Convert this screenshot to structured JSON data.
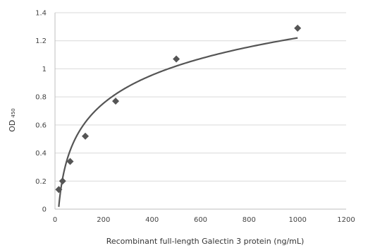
{
  "chart_data": {
    "type": "scatter",
    "title": "",
    "xlabel": "Recombinant full-length Galectin 3 protein (ng/mL)",
    "ylabel_main": "OD",
    "ylabel_sub": "450",
    "xlim": [
      0,
      1200
    ],
    "ylim": [
      0,
      1.4
    ],
    "x_ticks": [
      0,
      200,
      400,
      600,
      800,
      1000,
      1200
    ],
    "x_tick_labels": [
      "0",
      "200",
      "400",
      "600",
      "800",
      "1000",
      "1200"
    ],
    "y_ticks": [
      0,
      0.2,
      0.4,
      0.6,
      0.8,
      1.0,
      1.2,
      1.4
    ],
    "y_tick_labels": [
      "0",
      "0.2",
      "0.4",
      "0.6",
      "0.8",
      "1",
      "1.2",
      "1.4"
    ],
    "grid": "horizontal",
    "points": [
      {
        "x": 15.6,
        "y": 0.14
      },
      {
        "x": 31.25,
        "y": 0.2
      },
      {
        "x": 62.5,
        "y": 0.34
      },
      {
        "x": 125,
        "y": 0.52
      },
      {
        "x": 250,
        "y": 0.77
      },
      {
        "x": 500,
        "y": 1.07
      },
      {
        "x": 1000,
        "y": 1.29
      }
    ],
    "trendline": {
      "type": "logarithmic",
      "x_range": [
        15.6,
        1000
      ]
    },
    "colors": {
      "marker": "#555555",
      "line": "#555555",
      "grid": "#d9d9d9"
    }
  }
}
